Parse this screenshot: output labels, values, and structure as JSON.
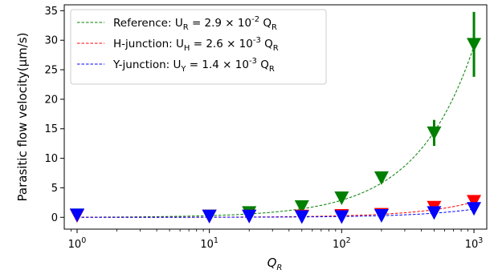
{
  "chart_data": {
    "type": "scatter",
    "xscale": "log",
    "xlim": [
      0.8,
      1250
    ],
    "ylim": [
      -2,
      36
    ],
    "xlabel": "Q_R",
    "ylabel": "Parasitic flow velocity(μm/s)",
    "xticks": [
      1,
      10,
      100,
      1000
    ],
    "xtick_labels": [
      "10^0",
      "10^1",
      "10^2",
      "10^3"
    ],
    "yticks": [
      0,
      5,
      10,
      15,
      20,
      25,
      30,
      35
    ],
    "legend_position": "top-left",
    "grid": false,
    "series": [
      {
        "name": "Reference: U_R = 2.9 × 10^-2 Q_R",
        "color": "#008000",
        "coefficient": 0.029,
        "x": [
          1,
          10,
          20,
          50,
          100,
          200,
          500,
          1000
        ],
        "y": [
          0.4,
          0.2,
          0.8,
          1.8,
          3.3,
          6.7,
          14.3,
          29.3
        ],
        "yerr": [
          0.2,
          0.2,
          0.3,
          0.4,
          0.6,
          0.7,
          2.2,
          5.5
        ]
      },
      {
        "name": "H-junction: U_H = 2.6 × 10^-3 Q_R",
        "color": "#ff0000",
        "coefficient": 0.0026,
        "x": [
          1,
          10,
          20,
          50,
          100,
          200,
          500,
          1000
        ],
        "y": [
          0.3,
          0.2,
          0.2,
          0.2,
          0.3,
          0.5,
          1.7,
          2.7
        ],
        "yerr": [
          0.1,
          0.1,
          0.1,
          0.1,
          0.1,
          0.1,
          0.2,
          0.3
        ]
      },
      {
        "name": "Y-junction: U_Y = 1.4 × 10^-3 Q_R",
        "color": "#0000ff",
        "coefficient": 0.0014,
        "x": [
          1,
          10,
          20,
          50,
          100,
          200,
          500,
          1000
        ],
        "y": [
          0.4,
          0.2,
          0.2,
          0.1,
          0.1,
          0.3,
          0.8,
          1.5
        ],
        "yerr": [
          0.1,
          0.1,
          0.1,
          0.1,
          0.1,
          0.1,
          0.2,
          0.3
        ]
      }
    ]
  }
}
